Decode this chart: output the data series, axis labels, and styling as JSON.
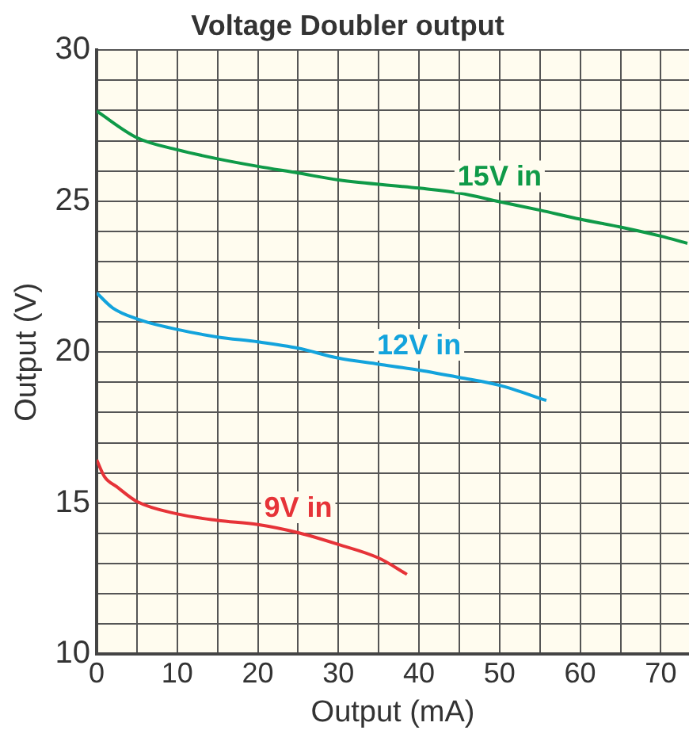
{
  "chart_data": {
    "type": "line",
    "title": "Voltage Doubler output",
    "xlabel": "Output (mA)",
    "ylabel": "Output (V)",
    "xlim": [
      0,
      73.5
    ],
    "ylim": [
      10,
      30
    ],
    "xticks": [
      0,
      {
        "value": 5,
        "label": null
      },
      10,
      {
        "value": 15,
        "label": null
      },
      20,
      {
        "value": 25,
        "label": null
      },
      30,
      {
        "value": 35,
        "label": null
      },
      40,
      {
        "value": 45,
        "label": null
      },
      50,
      {
        "value": 55,
        "label": null
      },
      60,
      {
        "value": 65,
        "label": null
      },
      70
    ],
    "yticks": [
      10,
      {
        "value": 11,
        "label": null
      },
      {
        "value": 12,
        "label": null
      },
      {
        "value": 13,
        "label": null
      },
      {
        "value": 14,
        "label": null
      },
      15,
      {
        "value": 16,
        "label": null
      },
      {
        "value": 17,
        "label": null
      },
      {
        "value": 18,
        "label": null
      },
      {
        "value": 19,
        "label": null
      },
      20,
      {
        "value": 21,
        "label": null
      },
      {
        "value": 22,
        "label": null
      },
      {
        "value": 23,
        "label": null
      },
      {
        "value": 24,
        "label": null
      },
      25,
      {
        "value": 26,
        "label": null
      },
      {
        "value": 27,
        "label": null
      },
      {
        "value": 28,
        "label": null
      },
      {
        "value": 29,
        "label": null
      },
      30
    ],
    "grid": true,
    "legend": false,
    "marker": "none",
    "line_style": "solid",
    "series": [
      {
        "name": "15V in",
        "color": "#0f9a48",
        "x": [
          0,
          5,
          10,
          15,
          20,
          25,
          30,
          40,
          45,
          50,
          55,
          60,
          65,
          70,
          73.3
        ],
        "values": [
          27.98,
          27.1,
          26.7,
          26.4,
          26.15,
          25.93,
          25.7,
          25.43,
          25.27,
          24.98,
          24.7,
          24.4,
          24.14,
          23.84,
          23.6
        ]
      },
      {
        "name": "12V in",
        "color": "#13a3dc",
        "x": [
          0,
          2,
          5,
          10,
          15,
          20,
          25,
          30,
          35,
          40,
          45,
          50,
          55.8
        ],
        "values": [
          21.96,
          21.46,
          21.1,
          20.75,
          20.5,
          20.34,
          20.13,
          19.8,
          19.6,
          19.4,
          19.16,
          18.9,
          18.4
        ]
      },
      {
        "name": "9V in",
        "color": "#e63338",
        "x": [
          0,
          1,
          2.5,
          5,
          10,
          15,
          20,
          25,
          30,
          35,
          38.5
        ],
        "values": [
          16.43,
          15.86,
          15.54,
          15.05,
          14.64,
          14.43,
          14.29,
          14.02,
          13.63,
          13.18,
          12.64
        ]
      }
    ]
  }
}
